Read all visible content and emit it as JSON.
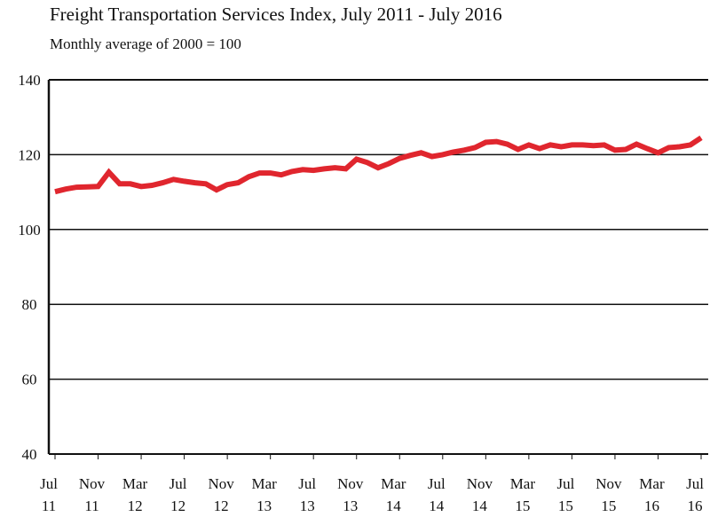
{
  "chart_data": {
    "type": "line",
    "title": "Freight Transportation Services Index, July 2011 - July 2016",
    "subtitle": "Monthly average of 2000 = 100",
    "xlabel": "",
    "ylabel": "",
    "ylim": [
      40,
      140
    ],
    "yticks": [
      40,
      60,
      80,
      100,
      120,
      140
    ],
    "grid": "horizontal",
    "line_color": "#e0262e",
    "x_tick_labels": [
      [
        "Jul",
        "11"
      ],
      [
        "Nov",
        "11"
      ],
      [
        "Mar",
        "12"
      ],
      [
        "Jul",
        "12"
      ],
      [
        "Nov",
        "12"
      ],
      [
        "Mar",
        "13"
      ],
      [
        "Jul",
        "13"
      ],
      [
        "Nov",
        "13"
      ],
      [
        "Mar",
        "14"
      ],
      [
        "Jul",
        "14"
      ],
      [
        "Nov",
        "14"
      ],
      [
        "Mar",
        "15"
      ],
      [
        "Jul",
        "15"
      ],
      [
        "Nov",
        "15"
      ],
      [
        "Mar",
        "16"
      ],
      [
        "Jul",
        "16"
      ]
    ],
    "x_start": "2011-07",
    "x_end": "2016-07",
    "series": [
      {
        "values": [
          110.1,
          110.8,
          111.3,
          111.4,
          111.5,
          115.3,
          112.2,
          112.2,
          111.5,
          111.8,
          112.5,
          113.4,
          112.9,
          112.5,
          112.2,
          110.6,
          112.0,
          112.5,
          114.1,
          115.1,
          115.1,
          114.6,
          115.5,
          116.0,
          115.8,
          116.2,
          116.5,
          116.2,
          118.8,
          117.9,
          116.5,
          117.6,
          119.0,
          119.8,
          120.5,
          119.5,
          120.0,
          120.7,
          121.2,
          121.9,
          123.3,
          123.5,
          122.8,
          121.4,
          122.6,
          121.6,
          122.6,
          122.1,
          122.6,
          122.6,
          122.4,
          122.6,
          121.2,
          121.4,
          122.8,
          121.6,
          120.5,
          121.9,
          122.1,
          122.6,
          124.5
        ]
      }
    ]
  }
}
